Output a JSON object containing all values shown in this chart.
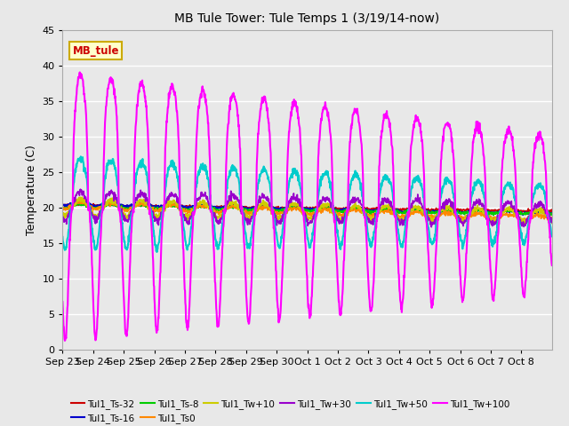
{
  "title": "MB Tule Tower: Tule Temps 1 (3/19/14-now)",
  "ylabel": "Temperature (C)",
  "ylim": [
    0,
    45
  ],
  "yticks": [
    0,
    5,
    10,
    15,
    20,
    25,
    30,
    35,
    40,
    45
  ],
  "plot_bg_color": "#e8e8e8",
  "grid_color": "white",
  "annotation_text": "MB_tule",
  "annotation_color": "#cc0000",
  "annotation_bg": "#ffffcc",
  "annotation_border": "#ccaa00",
  "series": [
    {
      "label": "Tul1_Ts-32",
      "color": "#cc0000",
      "lw": 1.2
    },
    {
      "label": "Tul1_Ts-16",
      "color": "#0000cc",
      "lw": 1.2
    },
    {
      "label": "Tul1_Ts-8",
      "color": "#00cc00",
      "lw": 1.2
    },
    {
      "label": "Tul1_Ts0",
      "color": "#ff8800",
      "lw": 1.2
    },
    {
      "label": "Tul1_Tw+10",
      "color": "#cccc00",
      "lw": 1.2
    },
    {
      "label": "Tul1_Tw+30",
      "color": "#9900cc",
      "lw": 1.2
    },
    {
      "label": "Tul1_Tw+50",
      "color": "#00cccc",
      "lw": 1.5
    },
    {
      "label": "Tul1_Tw+100",
      "color": "#ff00ff",
      "lw": 1.5
    }
  ],
  "xtick_labels": [
    "Sep 23",
    "Sep 24",
    "Sep 25",
    "Sep 26",
    "Sep 27",
    "Sep 28",
    "Sep 29",
    "Sep 30",
    "Oct 1",
    "Oct 2",
    "Oct 3",
    "Oct 4",
    "Oct 5",
    "Oct 6",
    "Oct 7",
    "Oct 8"
  ],
  "num_days": 16,
  "figsize": [
    6.4,
    4.8
  ],
  "dpi": 100
}
